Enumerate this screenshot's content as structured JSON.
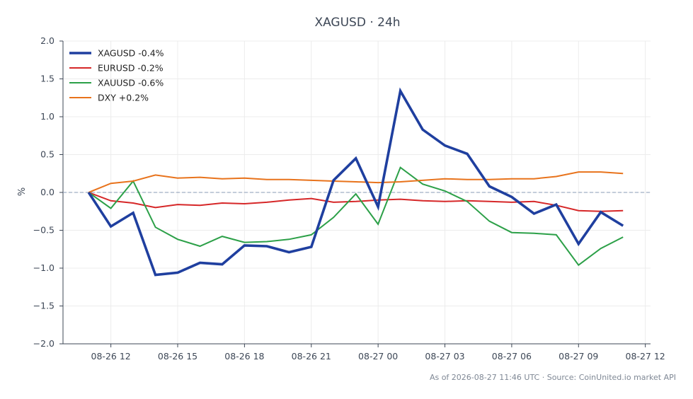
{
  "chart_data": {
    "type": "line",
    "title": "XAGUSD · 24h",
    "ylabel": "%",
    "xlabel": "",
    "ylim": [
      -2.0,
      2.0
    ],
    "yticks": [
      2.0,
      1.5,
      1.0,
      0.5,
      0.0,
      -0.5,
      -1.0,
      -1.5,
      -2.0
    ],
    "ytick_labels": [
      "2.0",
      "1.5",
      "1.0",
      "0.5",
      "0.0",
      "−0.5",
      "−1.0",
      "−1.5",
      "−2.0"
    ],
    "xlim": [
      "2026-08-26 09:51",
      "2026-08-27 12:14"
    ],
    "xticks": [
      "2026-08-26 12:00",
      "2026-08-26 15:00",
      "2026-08-26 18:00",
      "2026-08-26 21:00",
      "2026-08-27 00:00",
      "2026-08-27 03:00",
      "2026-08-27 06:00",
      "2026-08-27 09:00",
      "2026-08-27 12:00"
    ],
    "xtick_labels": [
      "08-26 12",
      "08-26 15",
      "08-26 18",
      "08-26 21",
      "08-27 00",
      "08-27 03",
      "08-27 06",
      "08-27 09",
      "08-27 12"
    ],
    "x": [
      "2026-08-26 11:00",
      "2026-08-26 12:00",
      "2026-08-26 13:00",
      "2026-08-26 14:00",
      "2026-08-26 15:00",
      "2026-08-26 16:00",
      "2026-08-26 17:00",
      "2026-08-26 18:00",
      "2026-08-26 19:00",
      "2026-08-26 20:00",
      "2026-08-26 21:00",
      "2026-08-26 22:00",
      "2026-08-26 23:00",
      "2026-08-27 00:00",
      "2026-08-27 01:00",
      "2026-08-27 02:00",
      "2026-08-27 03:00",
      "2026-08-27 04:00",
      "2026-08-27 05:00",
      "2026-08-27 06:00",
      "2026-08-27 07:00",
      "2026-08-27 08:00",
      "2026-08-27 09:00",
      "2026-08-27 10:00",
      "2026-08-27 11:00"
    ],
    "reference_line": 0.0,
    "grid": true,
    "legend_position": "top-left",
    "series": [
      {
        "name": "XAGUSD -0.4%",
        "color": "#1f3f9f",
        "emphasis": true,
        "values": [
          0.0,
          -0.45,
          -0.27,
          -1.09,
          -1.06,
          -0.93,
          -0.95,
          -0.7,
          -0.71,
          -0.79,
          -0.72,
          0.16,
          0.45,
          -0.19,
          1.34,
          0.83,
          0.62,
          0.51,
          0.08,
          -0.06,
          -0.28,
          -0.16,
          -0.68,
          -0.26,
          -0.44
        ]
      },
      {
        "name": "EURUSD -0.2%",
        "color": "#d62728",
        "values": [
          0.0,
          -0.11,
          -0.14,
          -0.2,
          -0.16,
          -0.17,
          -0.14,
          -0.15,
          -0.13,
          -0.1,
          -0.08,
          -0.13,
          -0.12,
          -0.1,
          -0.09,
          -0.11,
          -0.12,
          -0.11,
          -0.12,
          -0.13,
          -0.12,
          -0.17,
          -0.24,
          -0.25,
          -0.24
        ]
      },
      {
        "name": "XAUUSD -0.6%",
        "color": "#2ca048",
        "values": [
          0.0,
          -0.21,
          0.15,
          -0.46,
          -0.62,
          -0.71,
          -0.58,
          -0.66,
          -0.65,
          -0.62,
          -0.56,
          -0.33,
          -0.02,
          -0.42,
          0.33,
          0.11,
          0.02,
          -0.12,
          -0.38,
          -0.53,
          -0.54,
          -0.56,
          -0.96,
          -0.74,
          -0.59
        ]
      },
      {
        "name": "DXY +0.2%",
        "color": "#e8731c",
        "values": [
          0.0,
          0.12,
          0.15,
          0.23,
          0.19,
          0.2,
          0.18,
          0.19,
          0.17,
          0.17,
          0.16,
          0.15,
          0.14,
          0.13,
          0.14,
          0.16,
          0.18,
          0.17,
          0.17,
          0.18,
          0.18,
          0.21,
          0.27,
          0.27,
          0.25
        ]
      }
    ],
    "footer": "As of 2026-08-27 11:46 UTC · Source: CoinUnited.io market API"
  }
}
